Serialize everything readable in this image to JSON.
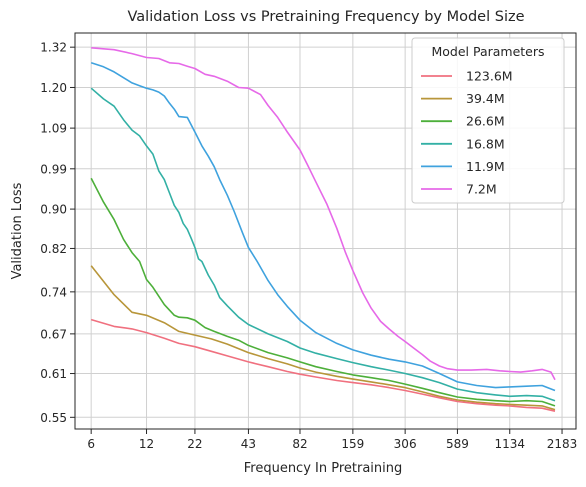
{
  "chart_data": {
    "type": "line",
    "title": "Validation Loss vs Pretraining Frequency by Model Size",
    "xlabel": "Frequency In Pretraining",
    "ylabel": "Validation Loss",
    "x_scale": "log2",
    "y_scale": "log",
    "xlim": [
      4.9,
      2600
    ],
    "ylim": [
      0.535,
      1.365
    ],
    "x_ticks": [
      6,
      12,
      22,
      43,
      82,
      159,
      306,
      589,
      1134,
      2183
    ],
    "x_tick_labels": [
      "6",
      "12",
      "22",
      "43",
      "82",
      "159",
      "306",
      "589",
      "1134",
      "2183"
    ],
    "y_ticks": [
      0.55,
      0.61,
      0.67,
      0.74,
      0.82,
      0.9,
      0.99,
      1.09,
      1.2,
      1.32
    ],
    "y_tick_labels": [
      "0.55",
      "0.61",
      "0.67",
      "0.74",
      "0.82",
      "0.90",
      "0.99",
      "1.09",
      "1.20",
      "1.32"
    ],
    "grid": true,
    "legend": {
      "title": "Model Parameters",
      "placement": "top-right"
    },
    "series": [
      {
        "name": "123.6M",
        "color": "#f0707f",
        "x": [
          6,
          8,
          10,
          12,
          15,
          18,
          22,
          27,
          33,
          43,
          55,
          70,
          82,
          100,
          130,
          159,
          200,
          250,
          306,
          380,
          470,
          589,
          750,
          950,
          1134,
          1400,
          1700,
          2000
        ],
        "y": [
          0.693,
          0.682,
          0.678,
          0.672,
          0.663,
          0.655,
          0.65,
          0.643,
          0.636,
          0.627,
          0.62,
          0.613,
          0.609,
          0.605,
          0.6,
          0.597,
          0.594,
          0.59,
          0.586,
          0.581,
          0.576,
          0.571,
          0.568,
          0.566,
          0.565,
          0.563,
          0.562,
          0.558
        ]
      },
      {
        "name": "39.4M",
        "color": "#b8963a",
        "x": [
          6,
          8,
          10,
          12,
          15,
          18,
          22,
          27,
          33,
          43,
          55,
          70,
          82,
          100,
          130,
          159,
          200,
          250,
          306,
          380,
          470,
          589,
          750,
          950,
          1134,
          1400,
          1700,
          2000
        ],
        "y": [
          0.787,
          0.735,
          0.705,
          0.7,
          0.688,
          0.674,
          0.668,
          0.662,
          0.654,
          0.641,
          0.632,
          0.624,
          0.618,
          0.612,
          0.606,
          0.602,
          0.598,
          0.594,
          0.59,
          0.584,
          0.578,
          0.573,
          0.57,
          0.568,
          0.567,
          0.566,
          0.565,
          0.56
        ]
      },
      {
        "name": "26.6M",
        "color": "#4daf3a",
        "x": [
          6,
          7,
          8,
          9,
          10,
          11,
          12,
          13,
          15,
          17,
          18,
          20,
          22,
          25,
          28,
          33,
          38,
          43,
          55,
          70,
          82,
          100,
          130,
          159,
          200,
          250,
          306,
          380,
          470,
          589,
          750,
          950,
          1134,
          1400,
          1700,
          2000
        ],
        "y": [
          0.968,
          0.915,
          0.878,
          0.838,
          0.812,
          0.795,
          0.762,
          0.748,
          0.718,
          0.7,
          0.697,
          0.696,
          0.692,
          0.68,
          0.674,
          0.666,
          0.66,
          0.652,
          0.641,
          0.633,
          0.627,
          0.62,
          0.613,
          0.608,
          0.604,
          0.6,
          0.595,
          0.589,
          0.583,
          0.577,
          0.574,
          0.572,
          0.571,
          0.572,
          0.571,
          0.565
        ]
      },
      {
        "name": "16.8M",
        "color": "#33b0a5",
        "x": [
          6,
          7,
          8,
          9,
          10,
          11,
          12,
          13,
          14,
          15,
          16,
          17,
          18,
          19,
          20,
          21,
          22,
          23,
          24,
          26,
          28,
          30,
          33,
          38,
          43,
          55,
          70,
          82,
          100,
          130,
          159,
          200,
          250,
          306,
          380,
          470,
          589,
          750,
          950,
          1134,
          1400,
          1700,
          2000
        ],
        "y": [
          1.198,
          1.168,
          1.148,
          1.112,
          1.085,
          1.07,
          1.045,
          1.025,
          0.985,
          0.965,
          0.935,
          0.908,
          0.893,
          0.87,
          0.858,
          0.84,
          0.822,
          0.8,
          0.795,
          0.77,
          0.752,
          0.73,
          0.716,
          0.697,
          0.685,
          0.67,
          0.658,
          0.648,
          0.64,
          0.632,
          0.626,
          0.62,
          0.615,
          0.61,
          0.604,
          0.597,
          0.588,
          0.583,
          0.58,
          0.578,
          0.579,
          0.578,
          0.572
        ]
      },
      {
        "name": "11.9M",
        "color": "#3fa2de",
        "x": [
          6,
          7,
          8,
          9,
          10,
          11,
          12,
          13,
          14,
          15,
          16,
          17,
          18,
          20,
          22,
          24,
          26,
          28,
          30,
          33,
          36,
          40,
          43,
          48,
          55,
          62,
          70,
          82,
          100,
          130,
          159,
          200,
          250,
          306,
          380,
          470,
          589,
          750,
          950,
          1134,
          1400,
          1700,
          2000
        ],
        "y": [
          1.272,
          1.26,
          1.245,
          1.228,
          1.213,
          1.205,
          1.198,
          1.193,
          1.187,
          1.176,
          1.156,
          1.14,
          1.12,
          1.118,
          1.08,
          1.045,
          1.02,
          0.995,
          0.965,
          0.93,
          0.895,
          0.85,
          0.822,
          0.795,
          0.76,
          0.735,
          0.715,
          0.692,
          0.672,
          0.655,
          0.645,
          0.637,
          0.631,
          0.627,
          0.621,
          0.61,
          0.598,
          0.593,
          0.59,
          0.591,
          0.592,
          0.593,
          0.586
        ]
      },
      {
        "name": "7.2M",
        "color": "#e669e8",
        "x": [
          6,
          8,
          10,
          12,
          14,
          16,
          18,
          20,
          22,
          25,
          28,
          33,
          38,
          43,
          50,
          55,
          62,
          70,
          82,
          90,
          100,
          115,
          130,
          145,
          159,
          180,
          200,
          225,
          250,
          280,
          306,
          340,
          380,
          420,
          470,
          520,
          589,
          700,
          850,
          1000,
          1134,
          1300,
          1500,
          1700,
          1900,
          2000
        ],
        "y": [
          1.318,
          1.312,
          1.3,
          1.288,
          1.285,
          1.272,
          1.27,
          1.262,
          1.255,
          1.238,
          1.232,
          1.218,
          1.2,
          1.198,
          1.18,
          1.15,
          1.118,
          1.08,
          1.035,
          1.0,
          0.96,
          0.91,
          0.86,
          0.812,
          0.778,
          0.738,
          0.712,
          0.69,
          0.678,
          0.666,
          0.658,
          0.648,
          0.638,
          0.628,
          0.621,
          0.617,
          0.615,
          0.615,
          0.616,
          0.614,
          0.613,
          0.612,
          0.614,
          0.616,
          0.612,
          0.601
        ]
      }
    ]
  }
}
